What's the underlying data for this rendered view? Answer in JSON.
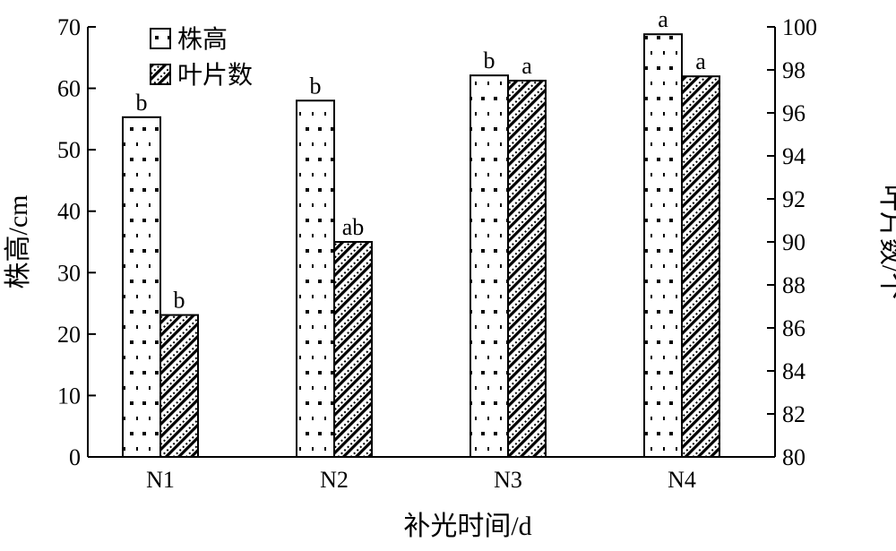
{
  "chart_data": {
    "type": "bar",
    "categories": [
      "N1",
      "N2",
      "N3",
      "N4"
    ],
    "series": [
      {
        "name": "株高",
        "axis": "left",
        "pattern": "dots",
        "values": [
          55.3,
          58.0,
          62.1,
          68.8
        ],
        "labels": [
          "b",
          "b",
          "b",
          "a"
        ]
      },
      {
        "name": "叶片数",
        "axis": "right",
        "pattern": "hatch",
        "values": [
          86.6,
          90.0,
          97.5,
          97.7
        ],
        "labels": [
          "b",
          "ab",
          "a",
          "a"
        ]
      }
    ],
    "xlabel": "补光时间/d",
    "ylabel": "株高/cm",
    "y2label": "叶片数/个",
    "ylim": [
      0,
      70
    ],
    "y2lim": [
      80,
      100
    ],
    "yticks": [
      "0",
      "10",
      "20",
      "30",
      "40",
      "50",
      "60",
      "70"
    ],
    "y2ticks": [
      "80",
      "82",
      "84",
      "86",
      "88",
      "90",
      "92",
      "94",
      "96",
      "98",
      "100"
    ],
    "legend_position": "top-left",
    "grid": false
  }
}
